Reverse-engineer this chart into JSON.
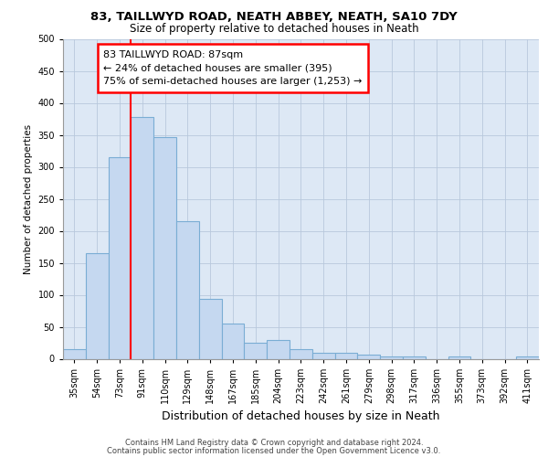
{
  "title1": "83, TAILLWYD ROAD, NEATH ABBEY, NEATH, SA10 7DY",
  "title2": "Size of property relative to detached houses in Neath",
  "xlabel": "Distribution of detached houses by size in Neath",
  "ylabel": "Number of detached properties",
  "bar_labels": [
    "35sqm",
    "54sqm",
    "73sqm",
    "91sqm",
    "110sqm",
    "129sqm",
    "148sqm",
    "167sqm",
    "185sqm",
    "204sqm",
    "223sqm",
    "242sqm",
    "261sqm",
    "279sqm",
    "298sqm",
    "317sqm",
    "336sqm",
    "355sqm",
    "373sqm",
    "392sqm",
    "411sqm"
  ],
  "bar_values": [
    15,
    165,
    315,
    378,
    347,
    215,
    94,
    55,
    25,
    29,
    15,
    10,
    9,
    6,
    4,
    4,
    0,
    4,
    0,
    0,
    3
  ],
  "bar_color": "#c5d8f0",
  "bar_edge_color": "#7aadd4",
  "vline_color": "red",
  "vline_x": 2.5,
  "annotation_text": "83 TAILLWYD ROAD: 87sqm\n← 24% of detached houses are smaller (395)\n75% of semi-detached houses are larger (1,253) →",
  "ylim": [
    0,
    500
  ],
  "yticks": [
    0,
    50,
    100,
    150,
    200,
    250,
    300,
    350,
    400,
    450,
    500
  ],
  "footer1": "Contains HM Land Registry data © Crown copyright and database right 2024.",
  "footer2": "Contains public sector information licensed under the Open Government Licence v3.0.",
  "bg_color": "#dde8f5",
  "grid_color": "#b8c8dc",
  "title1_fontsize": 9.5,
  "title2_fontsize": 8.5,
  "xlabel_fontsize": 9,
  "ylabel_fontsize": 7.5,
  "tick_fontsize": 7,
  "annot_fontsize": 8,
  "footer_fontsize": 6
}
